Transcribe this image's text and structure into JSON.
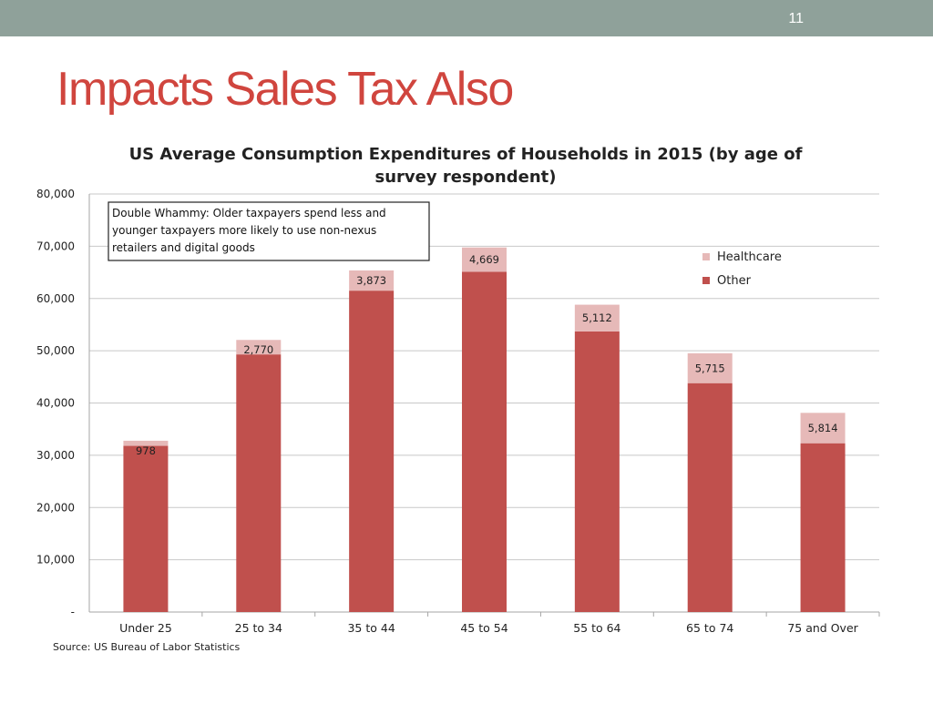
{
  "slide": {
    "number": "11",
    "title": "Impacts Sales Tax Also"
  },
  "colors": {
    "topbar": "#8fa19a",
    "title": "#d0453e",
    "other": "#c0504d",
    "healthcare": "#e6b9b8"
  },
  "chart_data": {
    "type": "bar",
    "stacked": true,
    "title": "US Average Consumption Expenditures of Households in 2015 (by age of survey respondent)",
    "categories": [
      "Under 25",
      "25 to 34",
      "35 to 44",
      "45 to 54",
      "55 to 64",
      "65 to 74",
      "75 and Over"
    ],
    "series": [
      {
        "name": "Other",
        "values": [
          31800,
          49300,
          61500,
          65100,
          53700,
          43800,
          32300
        ],
        "color": "#c0504d"
      },
      {
        "name": "Healthcare",
        "values": [
          978,
          2770,
          3873,
          4669,
          5112,
          5715,
          5814
        ],
        "color": "#e6b9b8"
      }
    ],
    "data_labels": [
      "978",
      "2,770",
      "3,873",
      "4,669",
      "5,112",
      "5,715",
      "5,814"
    ],
    "y_ticks": [
      "-",
      "10,000",
      "20,000",
      "30,000",
      "40,000",
      "50,000",
      "60,000",
      "70,000",
      "80,000"
    ],
    "ylim": [
      0,
      80000
    ],
    "grid": true,
    "legend": {
      "position": "right",
      "entries": [
        "Healthcare",
        "Other"
      ]
    },
    "annotation": "Double Whammy:  Older taxpayers spend less and younger taxpayers more likely to use non-nexus retailers and digital goods",
    "source": "Source: US Bureau of Labor Statistics"
  }
}
